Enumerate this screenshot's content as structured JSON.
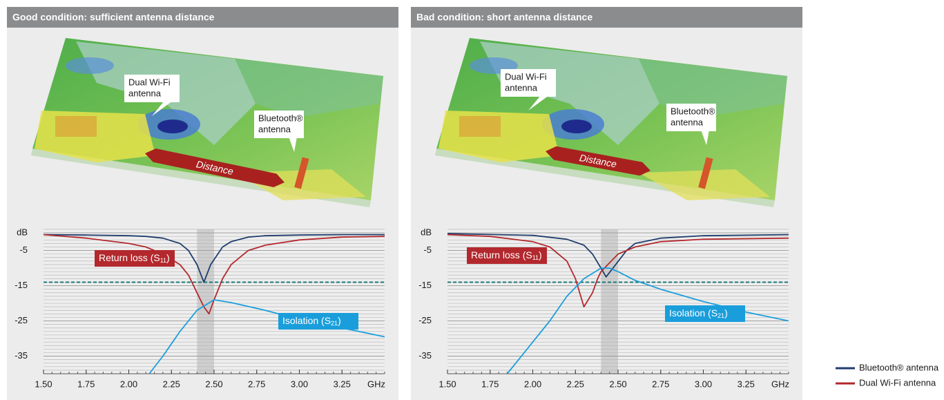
{
  "chart_data": [
    {
      "type": "line",
      "title": "Good condition: sufficient antenna distance",
      "image_labels": {
        "wifi": [
          "Dual Wi-Fi",
          "antenna"
        ],
        "bluetooth": [
          "Bluetooth®",
          "antenna"
        ],
        "distance": "Distance"
      },
      "xlim": [
        1.5,
        3.5
      ],
      "xticks": [
        {
          "value": 1.5,
          "label": "1.50"
        },
        {
          "value": 1.75,
          "label": "1.75"
        },
        {
          "value": 2,
          "label": "2.00"
        },
        {
          "value": 2.25,
          "label": "2.25"
        },
        {
          "value": 2.5,
          "label": "2.50"
        },
        {
          "value": 2.75,
          "label": "2.75"
        },
        {
          "value": 3,
          "label": "3.00"
        },
        {
          "value": 3.25,
          "label": "3.25"
        }
      ],
      "x_unit": "GHz",
      "ylim": [
        -40,
        1
      ],
      "yticks": [
        {
          "value": 0,
          "label": "dB"
        },
        -5,
        -15,
        -25,
        -35
      ],
      "grid": true,
      "threshold": -14,
      "band": [
        2.4,
        2.5
      ],
      "series": [
        {
          "name": "Bluetooth® antenna",
          "color": "#1f3d6d",
          "x": [
            1.5,
            1.75,
            2.0,
            2.1,
            2.2,
            2.3,
            2.35,
            2.4,
            2.44,
            2.48,
            2.55,
            2.6,
            2.7,
            2.8,
            3.0,
            3.25,
            3.5
          ],
          "values": [
            -0.5,
            -0.6,
            -0.8,
            -1,
            -1.5,
            -3,
            -5,
            -9,
            -14,
            -9,
            -4,
            -2.5,
            -1.2,
            -0.8,
            -0.6,
            -0.5,
            -0.5
          ]
        },
        {
          "name": "Dual Wi-Fi antenna",
          "color": "#b3282d",
          "x": [
            1.5,
            1.75,
            2.0,
            2.1,
            2.2,
            2.3,
            2.35,
            2.4,
            2.44,
            2.47,
            2.5,
            2.55,
            2.6,
            2.7,
            2.8,
            3.0,
            3.25,
            3.5
          ],
          "values": [
            -0.5,
            -1.5,
            -3,
            -4,
            -6,
            -9,
            -12,
            -17,
            -21,
            -23,
            -19,
            -13,
            -9,
            -5,
            -3.5,
            -2,
            -1.2,
            -1
          ]
        },
        {
          "color": "#1a9edb",
          "x": [
            2.12,
            2.2,
            2.3,
            2.4,
            2.5,
            2.6,
            2.8,
            3.0,
            3.25,
            3.5
          ],
          "values": [
            -40,
            -35,
            -28,
            -22,
            -19,
            -19.8,
            -22,
            -24.5,
            -27,
            -29.5
          ]
        }
      ],
      "annotations": [
        {
          "text": [
            "Return loss (S",
            "11",
            ")"
          ],
          "color": "#b3282d"
        },
        {
          "text": [
            "Isolation (S",
            "21",
            ")"
          ],
          "color": "#1a9edb"
        }
      ]
    },
    {
      "type": "line",
      "title": "Bad condition: short antenna distance",
      "image_labels": {
        "wifi": [
          "Dual Wi-Fi",
          "antenna"
        ],
        "bluetooth": [
          "Bluetooth®",
          "antenna"
        ],
        "distance": "Distance"
      },
      "xlim": [
        1.5,
        3.5
      ],
      "xticks": [
        {
          "value": 1.5,
          "label": "1.50"
        },
        {
          "value": 1.75,
          "label": "1.75"
        },
        {
          "value": 2,
          "label": "2.00"
        },
        {
          "value": 2.25,
          "label": "2.25"
        },
        {
          "value": 2.5,
          "label": "2.50"
        },
        {
          "value": 2.75,
          "label": "2.75"
        },
        {
          "value": 3,
          "label": "3.00"
        },
        {
          "value": 3.25,
          "label": "3.25"
        }
      ],
      "x_unit": "GHz",
      "ylim": [
        -40,
        1
      ],
      "yticks": [
        {
          "value": 0,
          "label": "dB"
        },
        -5,
        -15,
        -25,
        -35
      ],
      "grid": true,
      "threshold": -14,
      "band": [
        2.4,
        2.5
      ],
      "series": [
        {
          "name": "Bluetooth® antenna",
          "color": "#1f3d6d",
          "x": [
            1.5,
            2.0,
            2.2,
            2.3,
            2.35,
            2.4,
            2.43,
            2.47,
            2.55,
            2.6,
            2.75,
            3.0,
            3.5
          ],
          "values": [
            -0.2,
            -0.7,
            -1.8,
            -3.5,
            -6,
            -10,
            -12.5,
            -10,
            -5,
            -3,
            -1.5,
            -0.8,
            -0.5
          ]
        },
        {
          "name": "Dual Wi-Fi antenna",
          "color": "#b3282d",
          "x": [
            1.5,
            1.75,
            2.0,
            2.1,
            2.2,
            2.25,
            2.3,
            2.35,
            2.38,
            2.4,
            2.5,
            2.6,
            2.75,
            3.0,
            3.5
          ],
          "values": [
            -0.5,
            -1,
            -2.5,
            -4,
            -8,
            -13,
            -21,
            -17,
            -13,
            -11,
            -6,
            -4,
            -2.5,
            -1.8,
            -1.5
          ]
        },
        {
          "color": "#1a9edb",
          "x": [
            1.85,
            2.0,
            2.1,
            2.2,
            2.3,
            2.4,
            2.45,
            2.5,
            2.6,
            2.75,
            3.0,
            3.25,
            3.5
          ],
          "values": [
            -40,
            -31,
            -25,
            -18,
            -13,
            -10,
            -10,
            -11,
            -13.5,
            -16,
            -19.5,
            -22.5,
            -25
          ]
        }
      ],
      "annotations": [
        {
          "text": [
            "Return loss (S",
            "11",
            ")"
          ],
          "color": "#b3282d"
        },
        {
          "text": [
            "Isolation (S",
            "21",
            ")"
          ],
          "color": "#1a9edb"
        }
      ]
    }
  ]
}
